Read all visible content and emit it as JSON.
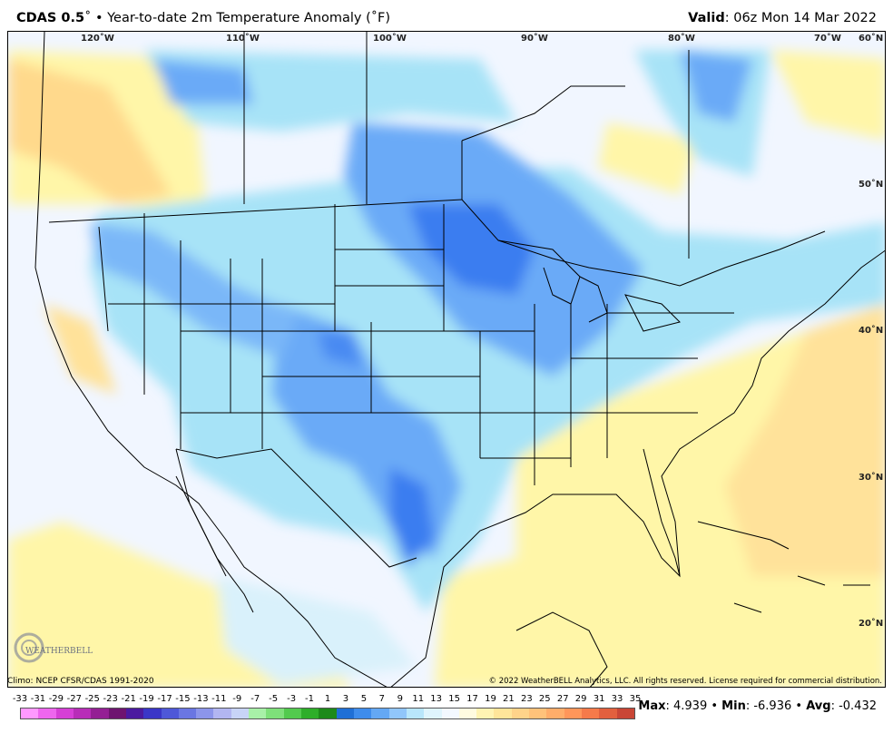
{
  "header": {
    "product": "CDAS 0.5",
    "degree_mark": "˚",
    "bullet": "•",
    "title": "Year-to-date 2m Temperature Anomaly (˚F)",
    "valid_label": "Valid",
    "valid_value": ": 06z Mon 14 Mar 2022"
  },
  "map": {
    "lon_labels": [
      "120˚W",
      "110˚W",
      "100˚W",
      "90˚W",
      "80˚W",
      "70˚W",
      "60˚N"
    ],
    "lat_labels": [
      "50˚N",
      "40˚N",
      "30˚N",
      "20˚N"
    ]
  },
  "footer": {
    "climo": "Climo: NCEP CFSR/CDAS 1991-2020",
    "copyright": "© 2022 WeatherBELL Analytics, LLC. All rights reserved. License required for commercial distribution.",
    "logo_text": "WEATHERBELL"
  },
  "colorbar": {
    "ticks": [
      "-33",
      "-31",
      "-29",
      "-27",
      "-25",
      "-23",
      "-21",
      "-19",
      "-17",
      "-15",
      "-13",
      "-11",
      "-9",
      "-7",
      "-5",
      "-3",
      "-1",
      "1",
      "3",
      "5",
      "7",
      "9",
      "11",
      "13",
      "15",
      "17",
      "19",
      "21",
      "23",
      "25",
      "27",
      "29",
      "31",
      "33",
      "35"
    ],
    "colors": [
      "#ff99ff",
      "#ee66ee",
      "#d63fd6",
      "#b82db8",
      "#941f94",
      "#6e1470",
      "#4b1aa0",
      "#3a36c7",
      "#4e58d8",
      "#6a76e2",
      "#8c95ea",
      "#b2b6f1",
      "#c8d4f7",
      "#a8f0a8",
      "#7ee07a",
      "#52ca4e",
      "#2eae2a",
      "#1d8a1a",
      "#1f6fd6",
      "#3e8cec",
      "#64a8f4",
      "#91c6fa",
      "#b9e6fb",
      "#dff4fd",
      "#f3f8ff",
      "#fffbe0",
      "#fff3b3",
      "#ffe59a",
      "#ffd38a",
      "#ffc27a",
      "#ffad6a",
      "#ff965a",
      "#f57a4a",
      "#e2603e",
      "#c94636"
    ]
  },
  "stats": {
    "max_label": "Max",
    "max_value": ": 4.939",
    "min_label": "Min",
    "min_value": ": -6.936",
    "avg_label": "Avg",
    "avg_value": ": -0.432",
    "sep": " • "
  },
  "colors": {
    "deep_blue": "#3a7df0",
    "mid_blue": "#6aaaf7",
    "light_blue": "#a7e3f7",
    "pale": "#e3f3fc",
    "yellow": "#fff6a8",
    "orange": "#ffd98c"
  }
}
